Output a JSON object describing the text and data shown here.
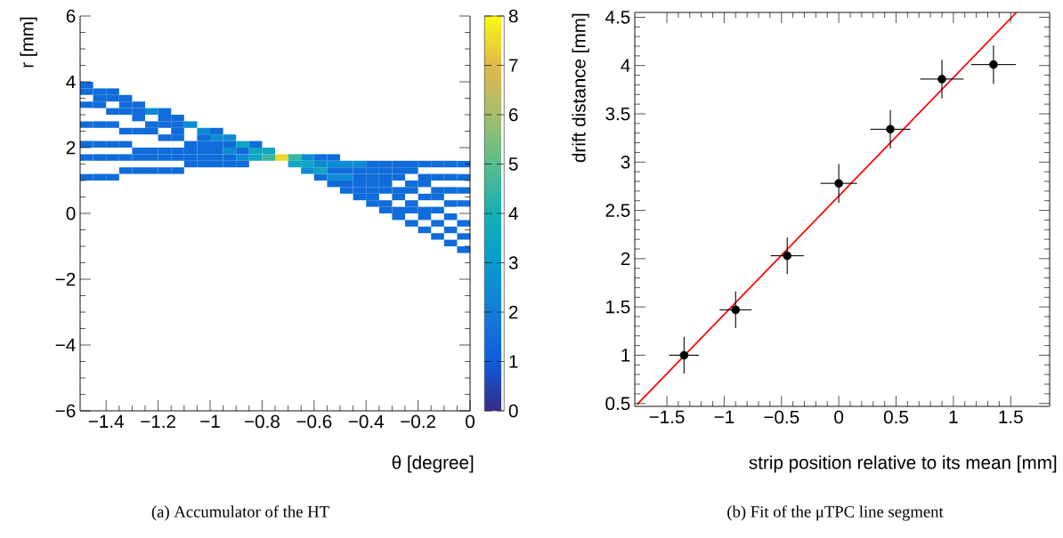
{
  "chart_data": [
    {
      "type": "heatmap",
      "xlabel": "θ [degree]",
      "ylabel": "r [mm]",
      "xlim": [
        -1.5,
        0
      ],
      "ylim": [
        -6,
        6
      ],
      "xticks": [
        {
          "value": -1.4,
          "label": "−1.4"
        },
        {
          "value": -1.2,
          "label": "−1.2"
        },
        {
          "value": -1,
          "label": "−1"
        },
        {
          "value": -0.8,
          "label": "−0.8"
        },
        {
          "value": -0.6,
          "label": "−0.6"
        },
        {
          "value": -0.4,
          "label": "−0.4"
        },
        {
          "value": -0.2,
          "label": "−0.2"
        },
        0
      ],
      "yticks": [
        {
          "value": -6,
          "label": "−6"
        },
        {
          "value": -4,
          "label": "−4"
        },
        {
          "value": -2,
          "label": "−2"
        },
        0,
        2,
        4,
        6
      ],
      "clim": [
        0,
        8
      ],
      "cticks": [
        0,
        1,
        2,
        3,
        4,
        5,
        6,
        7,
        8
      ],
      "x": [
        -1.475,
        -1.425,
        -1.375,
        -1.325,
        -1.275,
        -1.225,
        -1.175,
        -1.125,
        -1.075,
        -1.025,
        -0.975,
        -0.925,
        -0.875,
        -0.825,
        -0.775,
        -0.725,
        -0.675,
        -0.625,
        -0.575,
        -0.525,
        -0.475,
        -0.425,
        -0.375,
        -0.325,
        -0.275,
        -0.225,
        -0.175,
        -0.125,
        -0.075,
        -0.025
      ],
      "y": [
        3.9,
        3.7,
        3.5,
        3.3,
        3.1,
        2.9,
        2.7,
        2.5,
        2.3,
        2.1,
        1.9,
        1.7,
        1.5,
        1.3,
        1.1,
        0.9,
        0.7,
        0.5,
        0.3,
        0.1,
        -0.1,
        -0.3,
        -0.5,
        -0.7,
        -0.9,
        -1.1
      ],
      "cells": [
        [
          1.5,
          null,
          null,
          null,
          null,
          null,
          null,
          null,
          null,
          null,
          null,
          null,
          null,
          null,
          null,
          null,
          null,
          null,
          null,
          null,
          null,
          null,
          null,
          null,
          null,
          null,
          null,
          null,
          null,
          null
        ],
        [
          1.5,
          1.5,
          1.5,
          null,
          null,
          null,
          null,
          null,
          null,
          null,
          null,
          null,
          null,
          null,
          null,
          null,
          null,
          null,
          null,
          null,
          null,
          null,
          null,
          null,
          null,
          null,
          null,
          null,
          null,
          null
        ],
        [
          null,
          1.5,
          1.5,
          1.5,
          null,
          null,
          null,
          null,
          null,
          null,
          null,
          null,
          null,
          null,
          null,
          null,
          null,
          null,
          null,
          null,
          null,
          null,
          null,
          null,
          null,
          null,
          null,
          null,
          null,
          null
        ],
        [
          1.5,
          1.5,
          null,
          1.5,
          1.5,
          null,
          null,
          null,
          null,
          null,
          null,
          null,
          null,
          null,
          null,
          null,
          null,
          null,
          null,
          null,
          null,
          null,
          null,
          null,
          null,
          null,
          null,
          null,
          null,
          null
        ],
        [
          null,
          null,
          1.5,
          1.5,
          1.5,
          2.5,
          1.5,
          null,
          null,
          null,
          null,
          null,
          null,
          null,
          null,
          null,
          null,
          null,
          null,
          null,
          null,
          null,
          null,
          null,
          null,
          null,
          null,
          null,
          null,
          null
        ],
        [
          null,
          null,
          null,
          null,
          1.5,
          null,
          1.5,
          1.5,
          null,
          null,
          null,
          null,
          null,
          null,
          null,
          null,
          null,
          null,
          null,
          null,
          null,
          null,
          null,
          null,
          null,
          null,
          null,
          null,
          null,
          null
        ],
        [
          1.5,
          1.5,
          1.5,
          null,
          null,
          1.5,
          1.5,
          1.5,
          2.5,
          null,
          null,
          null,
          null,
          null,
          null,
          null,
          null,
          null,
          null,
          null,
          null,
          null,
          null,
          null,
          null,
          null,
          null,
          null,
          null,
          null
        ],
        [
          null,
          null,
          null,
          1.5,
          1.5,
          1.5,
          null,
          1.5,
          null,
          2.5,
          1.5,
          null,
          null,
          null,
          null,
          null,
          null,
          null,
          null,
          null,
          null,
          null,
          null,
          null,
          null,
          null,
          null,
          null,
          null,
          null
        ],
        [
          null,
          null,
          null,
          null,
          null,
          null,
          1.5,
          1.5,
          null,
          1.5,
          2.5,
          2.5,
          null,
          null,
          null,
          null,
          null,
          null,
          null,
          null,
          null,
          null,
          null,
          null,
          null,
          null,
          null,
          null,
          null,
          null
        ],
        [
          1.5,
          1.5,
          1.5,
          1.5,
          null,
          null,
          null,
          null,
          1.5,
          1.5,
          1.5,
          1.5,
          3.5,
          1.5,
          null,
          null,
          null,
          null,
          null,
          null,
          null,
          null,
          null,
          null,
          null,
          null,
          null,
          null,
          null,
          null
        ],
        [
          null,
          null,
          null,
          null,
          1.5,
          1.5,
          1.5,
          1.5,
          1.5,
          1.5,
          1.5,
          2.5,
          1.5,
          3.5,
          3.5,
          null,
          null,
          null,
          null,
          null,
          null,
          null,
          null,
          null,
          null,
          null,
          null,
          null,
          null,
          null
        ],
        [
          1.5,
          1.5,
          1.5,
          1.5,
          1.5,
          1.5,
          1.5,
          1.5,
          1.5,
          1.5,
          1.5,
          1.5,
          2.5,
          3.5,
          4.5,
          7.5,
          4.5,
          2.5,
          1.5,
          1.5,
          null,
          null,
          null,
          null,
          null,
          null,
          null,
          null,
          null,
          null
        ],
        [
          null,
          null,
          null,
          null,
          null,
          null,
          null,
          null,
          1.5,
          1.5,
          1.5,
          1.5,
          1.5,
          null,
          null,
          null,
          3.5,
          3.5,
          2.5,
          2.5,
          2.5,
          2.5,
          1.5,
          1.5,
          1.5,
          1.5,
          1.5,
          1.5,
          1.5,
          1.5
        ],
        [
          null,
          null,
          null,
          1.5,
          1.5,
          1.5,
          1.5,
          1.5,
          null,
          null,
          null,
          null,
          null,
          null,
          null,
          null,
          null,
          2.5,
          3.5,
          1.5,
          1.5,
          1.5,
          1.5,
          1.5,
          1.5,
          1.5,
          null,
          null,
          null,
          null
        ],
        [
          1.5,
          1.5,
          1.5,
          null,
          null,
          null,
          null,
          null,
          null,
          null,
          null,
          null,
          null,
          null,
          null,
          null,
          null,
          null,
          1.5,
          2.5,
          2.5,
          1.5,
          1.5,
          1.5,
          1.5,
          null,
          1.5,
          1.5,
          1.5,
          1.5
        ],
        [
          null,
          null,
          null,
          null,
          null,
          null,
          null,
          null,
          null,
          null,
          null,
          null,
          null,
          null,
          null,
          null,
          null,
          null,
          null,
          1.5,
          1.5,
          1.5,
          1.5,
          1.5,
          null,
          1.5,
          1.5,
          null,
          null,
          null
        ],
        [
          null,
          null,
          null,
          null,
          null,
          null,
          null,
          null,
          null,
          null,
          null,
          null,
          null,
          null,
          null,
          null,
          null,
          null,
          null,
          null,
          1.5,
          1.5,
          1.5,
          1.5,
          1.5,
          1.5,
          null,
          1.5,
          1.5,
          1.5
        ],
        [
          null,
          null,
          null,
          null,
          null,
          null,
          null,
          null,
          null,
          null,
          null,
          null,
          null,
          null,
          null,
          null,
          null,
          null,
          null,
          null,
          null,
          1.5,
          1.5,
          null,
          1.5,
          null,
          1.5,
          1.5,
          null,
          null
        ],
        [
          null,
          null,
          null,
          null,
          null,
          null,
          null,
          null,
          null,
          null,
          null,
          null,
          null,
          null,
          null,
          null,
          null,
          null,
          null,
          null,
          null,
          null,
          1.5,
          1.5,
          null,
          1.5,
          null,
          null,
          1.5,
          1.5
        ],
        [
          null,
          null,
          null,
          null,
          null,
          null,
          null,
          null,
          null,
          null,
          null,
          null,
          null,
          null,
          null,
          null,
          null,
          null,
          null,
          null,
          null,
          null,
          null,
          1.5,
          1.5,
          1.5,
          1.5,
          1.5,
          null,
          null
        ],
        [
          null,
          null,
          null,
          null,
          null,
          null,
          null,
          null,
          null,
          null,
          null,
          null,
          null,
          null,
          null,
          null,
          null,
          null,
          null,
          null,
          null,
          null,
          null,
          null,
          1.5,
          null,
          1.5,
          null,
          1.5,
          null
        ],
        [
          null,
          null,
          null,
          null,
          null,
          null,
          null,
          null,
          null,
          null,
          null,
          null,
          null,
          null,
          null,
          null,
          null,
          null,
          null,
          null,
          null,
          null,
          null,
          null,
          null,
          1.5,
          null,
          1.5,
          null,
          1.5
        ],
        [
          null,
          null,
          null,
          null,
          null,
          null,
          null,
          null,
          null,
          null,
          null,
          null,
          null,
          null,
          null,
          null,
          null,
          null,
          null,
          null,
          null,
          null,
          null,
          null,
          null,
          null,
          1.5,
          null,
          1.5,
          null
        ],
        [
          null,
          null,
          null,
          null,
          null,
          null,
          null,
          null,
          null,
          null,
          null,
          null,
          null,
          null,
          null,
          null,
          null,
          null,
          null,
          null,
          null,
          null,
          null,
          null,
          null,
          null,
          null,
          1.5,
          null,
          1.5
        ],
        [
          null,
          null,
          null,
          null,
          null,
          null,
          null,
          null,
          null,
          null,
          null,
          null,
          null,
          null,
          null,
          null,
          null,
          null,
          null,
          null,
          null,
          null,
          null,
          null,
          null,
          null,
          null,
          null,
          1.5,
          null
        ],
        [
          null,
          null,
          null,
          null,
          null,
          null,
          null,
          null,
          null,
          null,
          null,
          null,
          null,
          null,
          null,
          null,
          null,
          null,
          null,
          null,
          null,
          null,
          null,
          null,
          null,
          null,
          null,
          null,
          null,
          1.5
        ]
      ],
      "annotations": [
        "(a) Accumulator of the HT"
      ]
    },
    {
      "type": "scatter",
      "xlabel": "strip position relative to its mean [mm]",
      "ylabel": "drift distance [mm]",
      "xlim": [
        -1.78,
        1.84
      ],
      "ylim": [
        0.47,
        4.55
      ],
      "xticks": [
        {
          "value": -1.5,
          "label": "−1.5"
        },
        {
          "value": -1,
          "label": "−1"
        },
        {
          "value": -0.5,
          "label": "−0.5"
        },
        0,
        0.5,
        1,
        1.5
      ],
      "yticks": [
        0.5,
        1,
        1.5,
        2,
        2.5,
        3,
        3.5,
        4,
        4.5
      ],
      "series": [
        {
          "type": "scatter",
          "color": "#000000",
          "marker": "circle",
          "x": [
            -1.35,
            -0.9,
            -0.45,
            0,
            0.45,
            0.9,
            1.35
          ],
          "values": [
            1.0,
            1.47,
            2.03,
            2.78,
            3.34,
            3.86,
            4.01
          ],
          "errors": [
            0.19,
            0.19,
            0.19,
            0.2,
            0.2,
            0.2,
            0.2
          ],
          "xerrors": [
            0.13,
            0.14,
            0.145,
            0.16,
            0.175,
            0.19,
            0.195
          ]
        },
        {
          "type": "line",
          "color": "#ff0000",
          "x": [
            -1.76,
            1.55
          ],
          "values": [
            0.49,
            4.55
          ]
        }
      ],
      "annotations": [
        "(b) Fit of the μTPC line segment"
      ]
    }
  ]
}
